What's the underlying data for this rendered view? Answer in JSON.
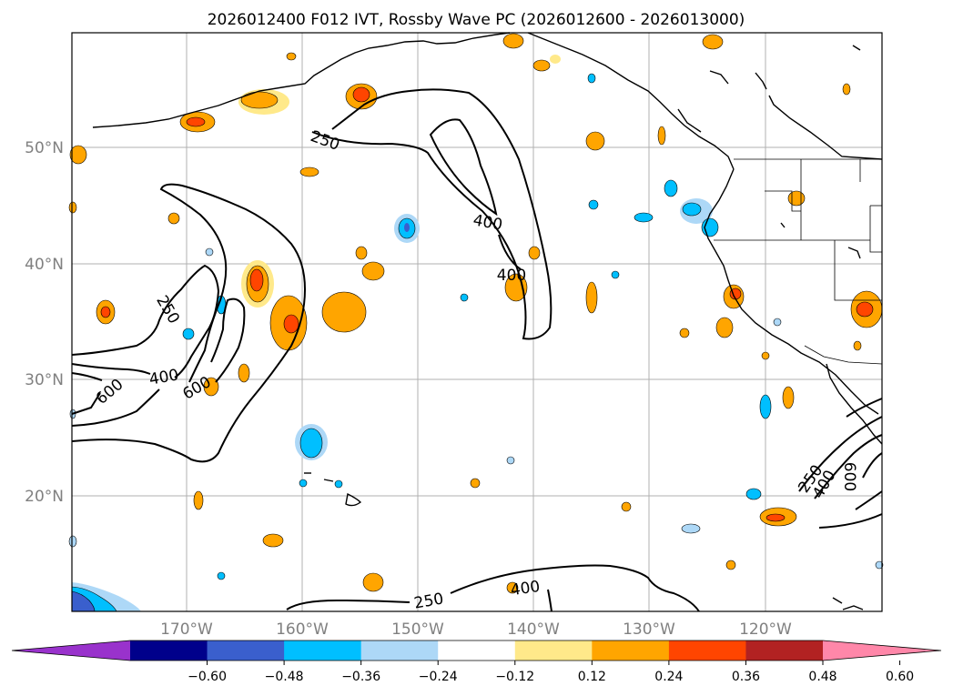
{
  "title": "2026012400 F012 IVT, Rossby Wave PC (2026012600 - 2026013000)",
  "map": {
    "lat_labels": [
      "50°N",
      "40°N",
      "30°N",
      "20°N"
    ],
    "lon_labels": [
      "170°W",
      "160°W",
      "150°W",
      "140°W",
      "130°W",
      "120°W"
    ],
    "label_color": "#808080",
    "grid": true,
    "ivt_contour_labels": [
      "250",
      "250",
      "250",
      "250",
      "400",
      "400",
      "400",
      "400",
      "400",
      "600",
      "600",
      "600"
    ]
  },
  "colorbar": {
    "tick_labels": [
      "−0.60",
      "−0.48",
      "−0.36",
      "−0.24",
      "−0.12",
      "0.12",
      "0.24",
      "0.36",
      "0.48",
      "0.60"
    ],
    "colors": [
      "#9932cc",
      "#00008b",
      "#3a5fcd",
      "#00bfff",
      "#add8f7",
      "#ffffff",
      "#ffe98a",
      "#ffa500",
      "#ff4500",
      "#b22222",
      "#ff87a9"
    ]
  }
}
